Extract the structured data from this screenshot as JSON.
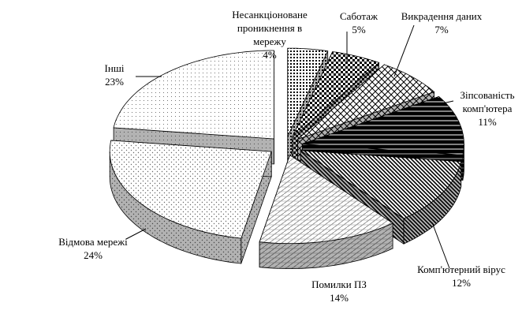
{
  "chart_data": {
    "type": "pie3d",
    "categories": [
      "Несанкціоноване проникнення в мережу",
      "Саботаж",
      "Викрадення даних",
      "Зіпсованість комп'ютера",
      "Комп'ютерний вірус",
      "Помилки ПЗ",
      "Відмова мережі",
      "Інші"
    ],
    "values": [
      4,
      5,
      7,
      11,
      12,
      14,
      24,
      23
    ],
    "value_labels": [
      "4%",
      "5%",
      "7%",
      "11%",
      "12%",
      "14%",
      "24%",
      "23%"
    ]
  }
}
